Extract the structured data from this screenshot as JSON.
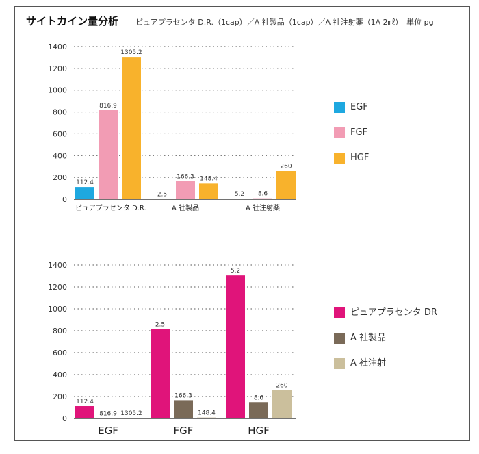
{
  "header": {
    "title": "サイトカイン量分析",
    "subtitle": "ピュアプラセンタ D.R.（1cap）／A 社製品（1cap）／A 社注射薬（1A 2㎖）　単位 pg"
  },
  "chart_data": [
    {
      "type": "bar",
      "categories": [
        "ピュアプラセンタ D.R.",
        "A 社製品",
        "A 社注射薬"
      ],
      "series": [
        {
          "name": "EGF",
          "color": "#1ea8e0",
          "values": [
            112.4,
            2.5,
            5.2
          ]
        },
        {
          "name": "FGF",
          "color": "#f29cb4",
          "values": [
            816.9,
            166.3,
            8.6
          ]
        },
        {
          "name": "HGF",
          "color": "#f8b22c",
          "values": [
            1305.2,
            148.4,
            260
          ]
        }
      ],
      "data_labels": [
        [
          "112.4",
          "816.9",
          "1305.2"
        ],
        [
          "2.5",
          "166.3",
          "148.4"
        ],
        [
          "5.2",
          "8.6",
          "260"
        ]
      ],
      "yticks": [
        "0",
        "200",
        "400",
        "600",
        "800",
        "1000",
        "1200",
        "1400"
      ],
      "ylim": [
        0,
        1400
      ],
      "grid": true,
      "legend": "right"
    },
    {
      "type": "bar",
      "categories": [
        "EGF",
        "FGF",
        "HGF"
      ],
      "series": [
        {
          "name": "ピュアプラセンタ DR",
          "color": "#e0147a",
          "values": [
            112.4,
            816.9,
            1305.2
          ]
        },
        {
          "name": "A 社製品",
          "color": "#7a6a58",
          "values": [
            2.5,
            166.3,
            148.4
          ]
        },
        {
          "name": "A 社注射",
          "color": "#cbbf9c",
          "values": [
            5.2,
            8.6,
            260
          ]
        }
      ],
      "data_labels": [
        [
          "112.4",
          "816.9",
          "1305.2"
        ],
        [
          "2.5",
          "166.3",
          "148.4"
        ],
        [
          "5.2",
          "8.6",
          "260"
        ]
      ],
      "yticks": [
        "0",
        "200",
        "400",
        "600",
        "800",
        "1000",
        "1200",
        "1400"
      ],
      "ylim": [
        0,
        1400
      ],
      "grid": true,
      "legend": "right"
    }
  ]
}
